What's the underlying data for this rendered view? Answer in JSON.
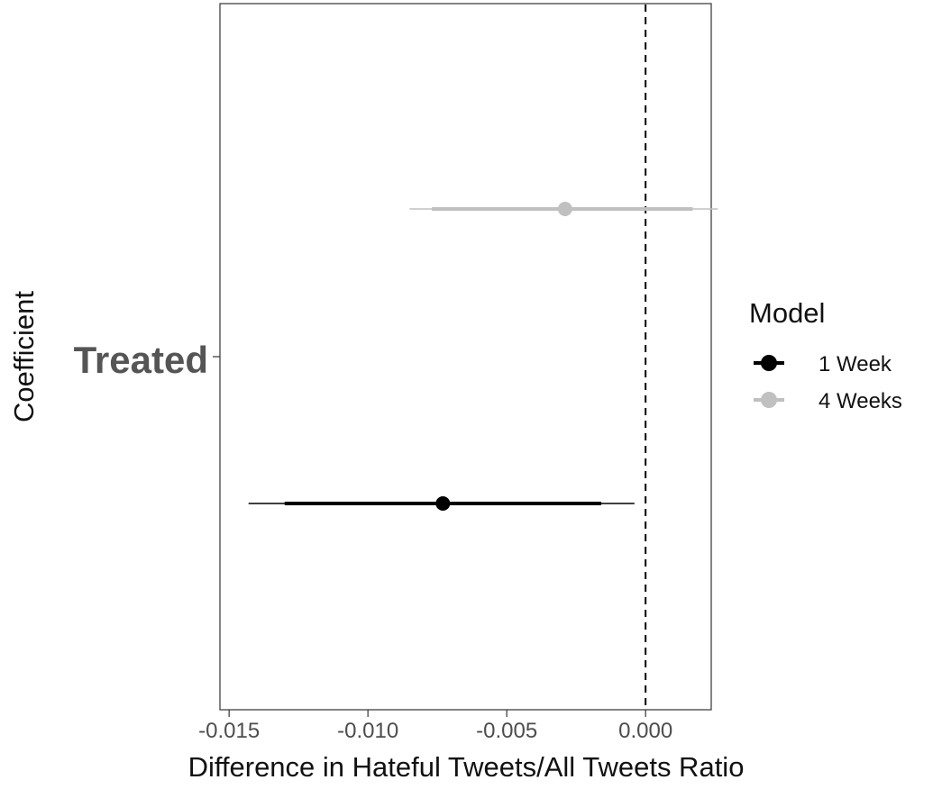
{
  "chart_data": {
    "type": "scatter",
    "title": "",
    "xlabel": "Difference in Hateful Tweets/All Tweets Ratio",
    "ylabel": "Coefficient",
    "category_label": "Treated",
    "xlim": [
      -0.0152,
      0.0023
    ],
    "x_ticks": [
      -0.015,
      -0.01,
      -0.005,
      0.0
    ],
    "x_tick_labels": [
      "-0.015",
      "-0.010",
      "-0.005",
      "0.000"
    ],
    "reference_line": 0.0,
    "grid": false,
    "legend": {
      "title": "Model",
      "placement": "right"
    },
    "series": [
      {
        "name": "4 Weeks",
        "color": "#c0c0c0",
        "estimate": -0.0029,
        "ci_inner": [
          -0.0077,
          0.0017
        ],
        "ci_outer": [
          -0.0085,
          0.0026
        ]
      },
      {
        "name": "1 Week",
        "color": "#000000",
        "estimate": -0.0073,
        "ci_inner": [
          -0.013,
          -0.0016
        ],
        "ci_outer": [
          -0.0143,
          -0.0004
        ]
      }
    ]
  }
}
